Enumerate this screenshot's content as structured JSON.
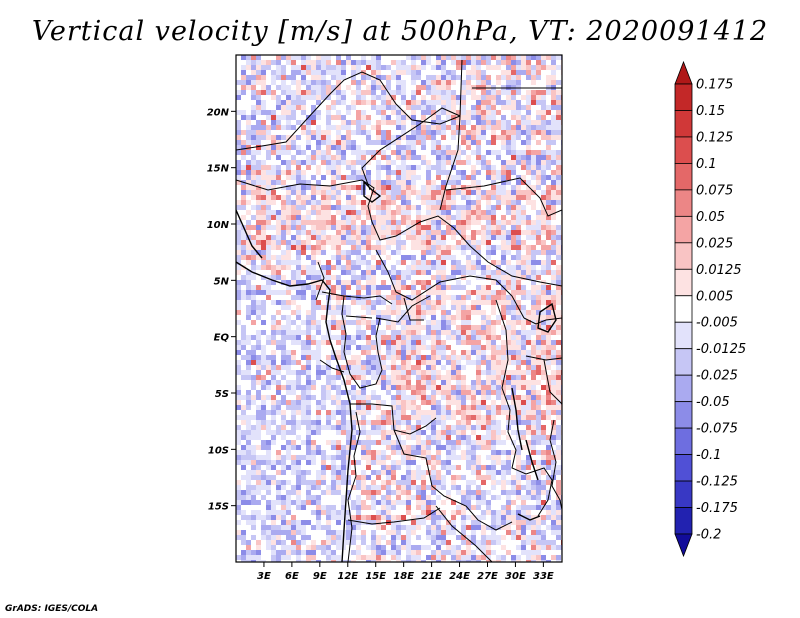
{
  "title": "Vertical velocity [m/s] at 500hPa, VT: 2020091412",
  "credit": "GrADS: IGES/COLA",
  "map": {
    "lon_range": [
      0,
      35
    ],
    "lat_range": [
      -20,
      25
    ],
    "lat_ticks": [
      {
        "value": 20,
        "label": "20N"
      },
      {
        "value": 15,
        "label": "15N"
      },
      {
        "value": 10,
        "label": "10N"
      },
      {
        "value": 5,
        "label": "5N"
      },
      {
        "value": 0,
        "label": "EQ"
      },
      {
        "value": -5,
        "label": "5S"
      },
      {
        "value": -10,
        "label": "10S"
      },
      {
        "value": -15,
        "label": "15S"
      }
    ],
    "lon_ticks": [
      {
        "value": 3,
        "label": "3E"
      },
      {
        "value": 6,
        "label": "6E"
      },
      {
        "value": 9,
        "label": "9E"
      },
      {
        "value": 12,
        "label": "12E"
      },
      {
        "value": 15,
        "label": "15E"
      },
      {
        "value": 18,
        "label": "18E"
      },
      {
        "value": 21,
        "label": "21E"
      },
      {
        "value": 24,
        "label": "24E"
      },
      {
        "value": 27,
        "label": "27E"
      },
      {
        "value": 30,
        "label": "30E"
      },
      {
        "value": 33,
        "label": "33E"
      }
    ]
  },
  "colorbar": {
    "labels": [
      "0.175",
      "0.15",
      "0.125",
      "0.1",
      "0.075",
      "0.05",
      "0.025",
      "0.0125",
      "0.005",
      "-0.005",
      "-0.0125",
      "-0.025",
      "-0.05",
      "-0.075",
      "-0.1",
      "-0.125",
      "-0.175",
      "-0.2"
    ],
    "colors": [
      "#b01818",
      "#c32828",
      "#d03838",
      "#dc4e4e",
      "#e46868",
      "#ec8686",
      "#f4a4a4",
      "#f9c4c4",
      "#fde2e2",
      "#ffffff",
      "#e2e2fb",
      "#c6c6f5",
      "#aaaaf0",
      "#8c8ce8",
      "#6e6ee0",
      "#5050d6",
      "#3838c4",
      "#2222b0",
      "#120c9a"
    ]
  }
}
